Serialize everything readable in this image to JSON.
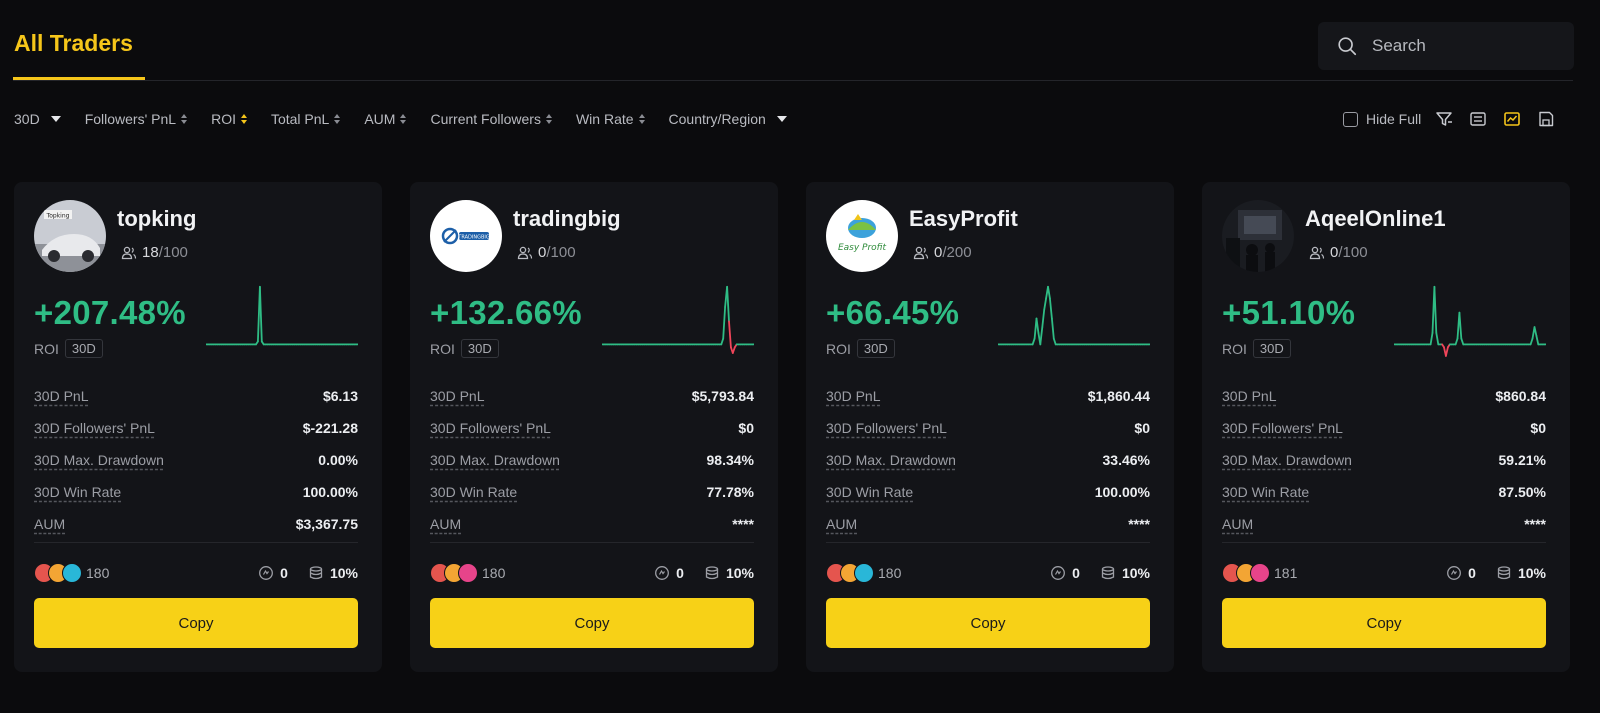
{
  "header": {
    "tab_title": "All Traders",
    "search_placeholder": "Search"
  },
  "filters": [
    {
      "label": "30D",
      "kind": "dropdown"
    },
    {
      "label": "Followers' PnL",
      "kind": "sort"
    },
    {
      "label": "ROI",
      "kind": "sort",
      "active": true
    },
    {
      "label": "Total PnL",
      "kind": "sort"
    },
    {
      "label": "AUM",
      "kind": "sort"
    },
    {
      "label": "Current Followers",
      "kind": "sort"
    },
    {
      "label": "Win Rate",
      "kind": "sort"
    },
    {
      "label": "Country/Region",
      "kind": "dropdown"
    }
  ],
  "tools": {
    "hide_full_label": "Hide Full",
    "icons": [
      "filter-icon",
      "list-view-icon",
      "card-view-icon",
      "save-icon"
    ],
    "active_view": "card-view-icon"
  },
  "colors": {
    "accent": "#f6c61a",
    "positive": "#2fbd85",
    "negative": "#f0455a",
    "card_bg": "#131418",
    "button": "#f7d117"
  },
  "cards": [
    {
      "name": "topking",
      "followers_current": "18",
      "followers_max": "/100",
      "roi": "+207.48%",
      "roi_label": "ROI",
      "roi_period": "30D",
      "stats": [
        {
          "label": "30D PnL",
          "value": "$6.13"
        },
        {
          "label": "30D Followers' PnL",
          "value": "$-221.28"
        },
        {
          "label": "30D Max. Drawdown",
          "value": "0.00%"
        },
        {
          "label": "30D Win Rate",
          "value": "100.00%"
        },
        {
          "label": "AUM",
          "value": "$3,367.75"
        }
      ],
      "copiers": "180",
      "copier_colors": [
        "#e5554e",
        "#f3a534",
        "#29b7d8"
      ],
      "meta_a": "0",
      "meta_b": "10%",
      "copy_label": "Copy",
      "spark": [
        0,
        0,
        0,
        0,
        0,
        0,
        0,
        0,
        0,
        0,
        0,
        0,
        0,
        0,
        0,
        0,
        0,
        0,
        0,
        0,
        0,
        0,
        0,
        0,
        0,
        0,
        0,
        0.05,
        1,
        0.05,
        0,
        0,
        0,
        0,
        0,
        0,
        0,
        0,
        0,
        0,
        0,
        0,
        0,
        0,
        0,
        0,
        0,
        0,
        0,
        0,
        0,
        0,
        0,
        0,
        0,
        0,
        0,
        0,
        0,
        0,
        0,
        0,
        0,
        0,
        0,
        0,
        0,
        0,
        0,
        0,
        0,
        0,
        0,
        0,
        0,
        0,
        0,
        0,
        0,
        0
      ]
    },
    {
      "name": "tradingbig",
      "followers_current": "0",
      "followers_max": "/100",
      "roi": "+132.66%",
      "roi_label": "ROI",
      "roi_period": "30D",
      "stats": [
        {
          "label": "30D PnL",
          "value": "$5,793.84"
        },
        {
          "label": "30D Followers' PnL",
          "value": "$0"
        },
        {
          "label": "30D Max. Drawdown",
          "value": "98.34%"
        },
        {
          "label": "30D Win Rate",
          "value": "77.78%"
        },
        {
          "label": "AUM",
          "value": "****"
        }
      ],
      "copiers": "180",
      "copier_colors": [
        "#e5554e",
        "#f3a534",
        "#e7448a"
      ],
      "meta_a": "0",
      "meta_b": "10%",
      "copy_label": "Copy",
      "spark": [
        0,
        0,
        0,
        0,
        0,
        0,
        0,
        0,
        0,
        0,
        0,
        0,
        0,
        0,
        0,
        0,
        0,
        0,
        0,
        0,
        0,
        0,
        0,
        0,
        0,
        0,
        0,
        0,
        0,
        0,
        0,
        0,
        0,
        0,
        0,
        0,
        0,
        0,
        0,
        0,
        0,
        0,
        0,
        0,
        0,
        0,
        0,
        0,
        0,
        0,
        0,
        0,
        0,
        0,
        0,
        0,
        0,
        0,
        0,
        0,
        0,
        0,
        0,
        0.1,
        0.65,
        1,
        0.4,
        -0.05,
        -0.15,
        -0.05,
        0,
        0,
        0,
        0,
        0,
        0,
        0,
        0,
        0,
        0
      ]
    },
    {
      "name": "EasyProfit",
      "followers_current": "0",
      "followers_max": "/200",
      "roi": "+66.45%",
      "roi_label": "ROI",
      "roi_period": "30D",
      "stats": [
        {
          "label": "30D PnL",
          "value": "$1,860.44"
        },
        {
          "label": "30D Followers' PnL",
          "value": "$0"
        },
        {
          "label": "30D Max. Drawdown",
          "value": "33.46%"
        },
        {
          "label": "30D Win Rate",
          "value": "100.00%"
        },
        {
          "label": "AUM",
          "value": "****"
        }
      ],
      "copiers": "180",
      "copier_colors": [
        "#e5554e",
        "#f3a534",
        "#29b7d8"
      ],
      "meta_a": "0",
      "meta_b": "10%",
      "copy_label": "Copy",
      "spark": [
        0,
        0,
        0,
        0,
        0,
        0,
        0,
        0,
        0,
        0,
        0,
        0,
        0,
        0,
        0,
        0,
        0,
        0,
        0,
        0.1,
        0.45,
        0.2,
        0,
        0.3,
        0.6,
        0.8,
        1,
        0.8,
        0.45,
        0.1,
        0,
        0,
        0,
        0,
        0,
        0,
        0,
        0,
        0,
        0,
        0,
        0,
        0,
        0,
        0,
        0,
        0,
        0,
        0,
        0,
        0,
        0,
        0,
        0,
        0,
        0,
        0,
        0,
        0,
        0,
        0,
        0,
        0,
        0,
        0,
        0,
        0,
        0,
        0,
        0,
        0,
        0,
        0,
        0,
        0,
        0,
        0,
        0,
        0,
        0
      ]
    },
    {
      "name": "AqeelOnline1",
      "followers_current": "0",
      "followers_max": "/100",
      "roi": "+51.10%",
      "roi_label": "ROI",
      "roi_period": "30D",
      "stats": [
        {
          "label": "30D PnL",
          "value": "$860.84"
        },
        {
          "label": "30D Followers' PnL",
          "value": "$0"
        },
        {
          "label": "30D Max. Drawdown",
          "value": "59.21%"
        },
        {
          "label": "30D Win Rate",
          "value": "87.50%"
        },
        {
          "label": "AUM",
          "value": "****"
        }
      ],
      "copiers": "181",
      "copier_colors": [
        "#e5554e",
        "#f3a534",
        "#e7448a"
      ],
      "meta_a": "0",
      "meta_b": "10%",
      "copy_label": "Copy",
      "spark": [
        0,
        0,
        0,
        0,
        0,
        0,
        0,
        0,
        0,
        0,
        0,
        0,
        0,
        0,
        0,
        0,
        0,
        0,
        0,
        0,
        0.2,
        1,
        0.2,
        0,
        0,
        0,
        -0.05,
        -0.2,
        -0.05,
        0,
        0,
        0,
        0,
        0.1,
        0.55,
        0.1,
        0,
        0,
        0,
        0,
        0,
        0,
        0,
        0,
        0,
        0,
        0,
        0,
        0,
        0,
        0,
        0,
        0,
        0,
        0,
        0,
        0,
        0,
        0,
        0,
        0,
        0,
        0,
        0,
        0,
        0,
        0,
        0,
        0,
        0,
        0,
        0,
        0.1,
        0.3,
        0.15,
        0,
        0,
        0,
        0,
        0
      ]
    }
  ]
}
